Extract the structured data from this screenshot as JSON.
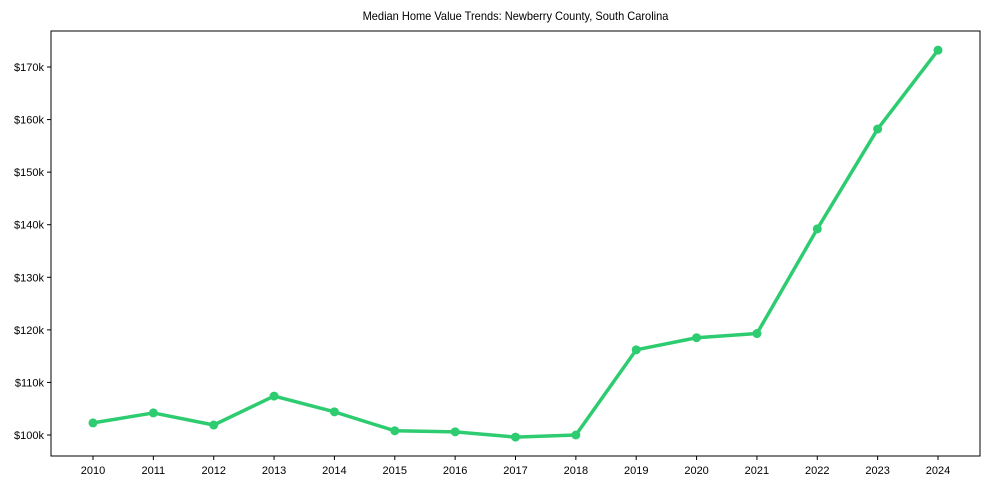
{
  "chart_data": {
    "type": "line",
    "title": "Median Home Value Trends: Newberry County, South Carolina",
    "xlabel": "",
    "ylabel": "",
    "x": [
      2010,
      2011,
      2012,
      2013,
      2014,
      2015,
      2016,
      2017,
      2018,
      2019,
      2020,
      2021,
      2022,
      2023,
      2024
    ],
    "series": [
      {
        "name": "Median Home Value",
        "color": "#2ecc71",
        "values": [
          102300,
          104200,
          101900,
          107400,
          104400,
          100800,
          100600,
          99600,
          100000,
          116200,
          118500,
          119300,
          139200,
          158200,
          173200
        ]
      }
    ],
    "yticks": [
      100000,
      110000,
      120000,
      130000,
      140000,
      150000,
      160000,
      170000
    ],
    "ytick_labels": [
      "$100k",
      "$110k",
      "$120k",
      "$130k",
      "$140k",
      "$150k",
      "$160k",
      "$170k"
    ],
    "xtick_labels": [
      "2010",
      "2011",
      "2012",
      "2013",
      "2014",
      "2015",
      "2016",
      "2017",
      "2018",
      "2019",
      "2020",
      "2021",
      "2022",
      "2023",
      "2024"
    ],
    "ylim": [
      96000,
      177000
    ],
    "grid": false,
    "legend": false,
    "markers": true
  }
}
